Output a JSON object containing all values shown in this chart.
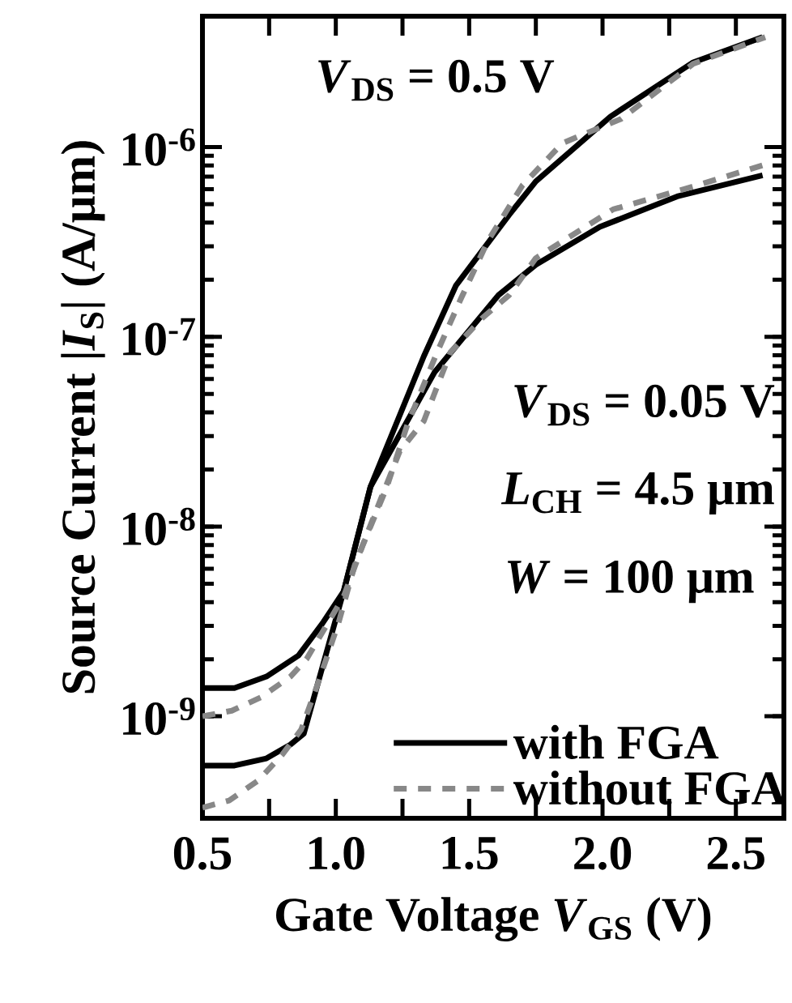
{
  "chart_data": {
    "type": "line",
    "xlabel": "Gate Voltage *V*$_{GS}$ (V)",
    "ylabel": "Source Current |*I*$_{S}$| (A/μm)",
    "annotations": [
      "*V*$_{DS}$ = 0.5 V",
      "*V*$_{DS}$ = 0.05 V",
      "*L*$_{CH}$ = 4.5 μm",
      "*W* = 100 μm"
    ],
    "log": "y",
    "xlim": [
      0.5,
      2.68
    ],
    "ylim": [
      2.9e-10,
      4.9e-06
    ],
    "xticks": [
      {
        "value": 0.5,
        "label": "0.5"
      },
      {
        "value": 0.75,
        "label": null
      },
      {
        "value": 1.0,
        "label": "1.0"
      },
      {
        "value": 1.25,
        "label": null
      },
      {
        "value": 1.5,
        "label": "1.5"
      },
      {
        "value": 1.75,
        "label": null
      },
      {
        "value": 2.0,
        "label": "2.0"
      },
      {
        "value": 2.25,
        "label": null
      },
      {
        "value": 2.5,
        "label": "2.5"
      }
    ],
    "yticks": [
      {
        "value": 1e-09,
        "label": "10$^{-9}$"
      },
      {
        "value": 1e-08,
        "label": "10$^{-8}$"
      },
      {
        "value": 1e-07,
        "label": "10$^{-7}$"
      },
      {
        "value": 1e-06,
        "label": "10$^{-6}$"
      }
    ],
    "legend": "bottom right",
    "series": [
      {
        "name": "with FGA",
        "color": "#000000",
        "line_style": "solid",
        "x": [
          0.5,
          0.62,
          0.74,
          0.86,
          0.95,
          1.03,
          1.13,
          1.33,
          1.45,
          1.65,
          1.75,
          2.03,
          2.34,
          2.6
        ],
        "values": [
          1.41e-09,
          1.41e-09,
          1.62e-09,
          2.09e-09,
          3.09e-09,
          4.57e-09,
          1.62e-08,
          7.9e-08,
          1.86e-07,
          4.4e-07,
          6.6e-07,
          1.45e-06,
          2.8e-06,
          3.8e-06
        ]
      },
      {
        "color": "#000000",
        "line_style": "solid",
        "x": [
          0.5,
          0.62,
          0.74,
          0.83,
          0.88,
          1.03,
          1.13,
          1.37,
          1.61,
          1.75,
          1.99,
          2.28,
          2.6
        ],
        "values": [
          5.5e-10,
          5.5e-10,
          6e-10,
          7.1e-10,
          8.1e-10,
          4.6e-09,
          1.62e-08,
          6.5e-08,
          1.66e-07,
          2.4e-07,
          3.8e-07,
          5.5e-07,
          7.1e-07
        ]
      },
      {
        "name": "without FGA",
        "color": "#888888",
        "line_style": "dashed",
        "x": [
          0.5,
          0.61,
          0.72,
          0.83,
          0.89,
          1.03,
          1.1,
          1.19,
          1.27,
          1.38,
          1.47,
          1.57,
          1.7,
          1.85,
          2.07,
          2.34,
          2.61
        ],
        "values": [
          1e-09,
          1.07e-09,
          1.26e-09,
          1.62e-09,
          2e-09,
          4.3e-09,
          7.9e-09,
          1.6e-08,
          3.5e-08,
          8.3e-08,
          1.6e-07,
          3.2e-07,
          6.3e-07,
          1.05e-06,
          1.41e-06,
          2.75e-06,
          3.8e-06
        ]
      },
      {
        "color": "#888888",
        "line_style": "dashed",
        "x": [
          0.5,
          0.6,
          0.71,
          0.8,
          0.87,
          0.93,
          1.01,
          1.07,
          1.15,
          1.24,
          1.33,
          1.43,
          1.55,
          1.65,
          1.75,
          2.04,
          2.34,
          2.61
        ],
        "values": [
          3.3e-10,
          3.6e-10,
          4.6e-10,
          6.3e-10,
          8.5e-10,
          1.45e-09,
          3.1e-09,
          6.2e-09,
          1.2e-08,
          2.5e-08,
          3.6e-08,
          8.3e-08,
          1.26e-07,
          1.66e-07,
          2.6e-07,
          4.7e-07,
          6.2e-07,
          8.1e-07
        ]
      }
    ]
  }
}
